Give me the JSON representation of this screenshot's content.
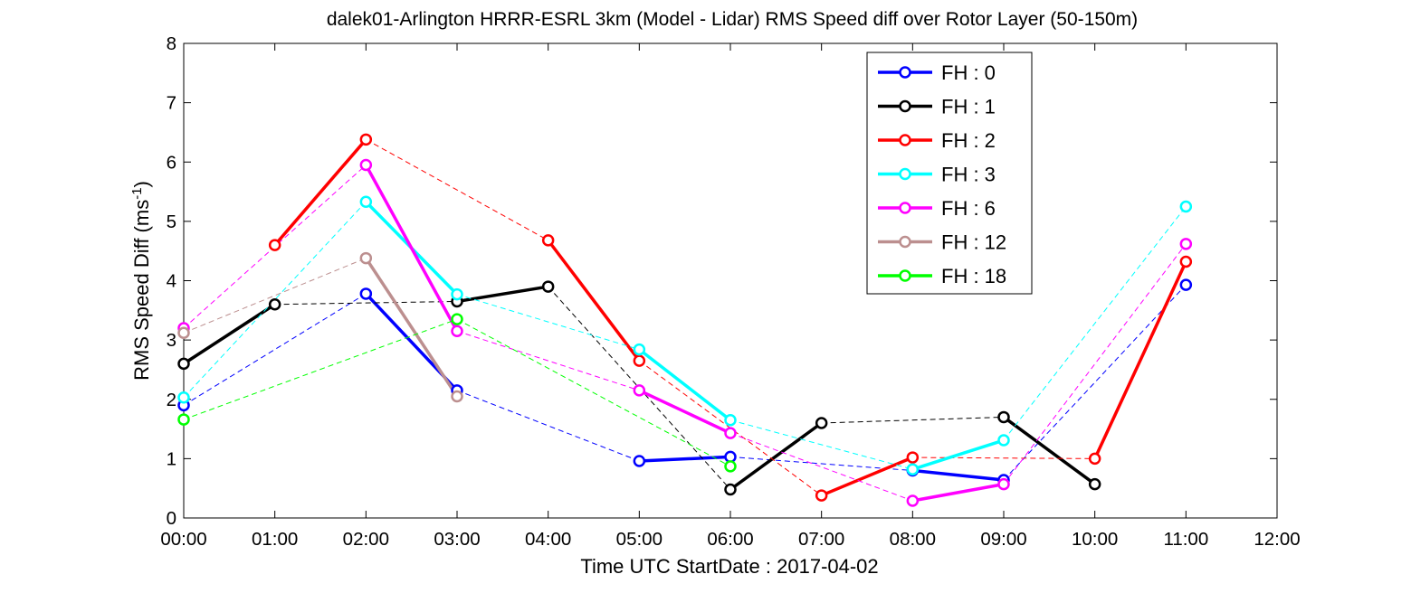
{
  "chart_data": {
    "type": "line",
    "title": "dalek01-Arlington HRRR-ESRL 3km (Model - Lidar) RMS Speed diff over Rotor Layer (50-150m)",
    "xlabel": "Time UTC     StartDate : 2017-04-02",
    "ylabel": {
      "text": "RMS Speed Diff (ms",
      "sup": "-1",
      "tail": ")"
    },
    "xlim": [
      0,
      12
    ],
    "ylim": [
      0,
      8
    ],
    "xticks": [
      {
        "x": 0,
        "label": "00:00"
      },
      {
        "x": 1,
        "label": "01:00"
      },
      {
        "x": 2,
        "label": "02:00"
      },
      {
        "x": 3,
        "label": "03:00"
      },
      {
        "x": 4,
        "label": "04:00"
      },
      {
        "x": 5,
        "label": "05:00"
      },
      {
        "x": 6,
        "label": "06:00"
      },
      {
        "x": 7,
        "label": "07:00"
      },
      {
        "x": 8,
        "label": "08:00"
      },
      {
        "x": 9,
        "label": "09:00"
      },
      {
        "x": 10,
        "label": "10:00"
      },
      {
        "x": 11,
        "label": "11:00"
      },
      {
        "x": 12,
        "label": "12:00"
      }
    ],
    "yticks": [
      {
        "y": 0,
        "label": "0"
      },
      {
        "y": 1,
        "label": "1"
      },
      {
        "y": 2,
        "label": "2"
      },
      {
        "y": 3,
        "label": "3"
      },
      {
        "y": 4,
        "label": "4"
      },
      {
        "y": 5,
        "label": "5"
      },
      {
        "y": 6,
        "label": "6"
      },
      {
        "y": 7,
        "label": "7"
      },
      {
        "y": 8,
        "label": "8"
      }
    ],
    "grid": false,
    "legend_position": "top-right",
    "series": [
      {
        "name": "FH : 0",
        "color": "#0000ff",
        "points": [
          [
            0,
            1.9
          ],
          [
            2,
            3.78
          ],
          [
            3,
            2.15
          ],
          [
            5,
            0.96
          ],
          [
            6,
            1.03
          ],
          [
            8,
            0.8
          ],
          [
            9,
            0.64
          ],
          [
            11,
            3.93
          ]
        ],
        "solid_segments": [
          [
            2,
            3
          ],
          [
            5,
            6
          ],
          [
            8,
            9
          ]
        ]
      },
      {
        "name": "FH : 1",
        "color": "#000000",
        "points": [
          [
            0,
            2.6
          ],
          [
            1,
            3.6
          ],
          [
            3,
            3.65
          ],
          [
            4,
            3.9
          ],
          [
            6,
            0.48
          ],
          [
            7,
            1.6
          ],
          [
            9,
            1.7
          ],
          [
            10,
            0.57
          ]
        ],
        "solid_segments": [
          [
            0,
            1
          ],
          [
            3,
            4
          ],
          [
            6,
            7
          ],
          [
            9,
            10
          ]
        ]
      },
      {
        "name": "FH : 2",
        "color": "#ff0000",
        "points": [
          [
            1,
            4.6
          ],
          [
            2,
            6.38
          ],
          [
            4,
            4.68
          ],
          [
            5,
            2.65
          ],
          [
            7,
            0.38
          ],
          [
            8,
            1.02
          ],
          [
            10,
            1.0
          ],
          [
            11,
            4.32
          ]
        ],
        "solid_segments": [
          [
            1,
            2
          ],
          [
            4,
            5
          ],
          [
            7,
            8
          ],
          [
            10,
            11
          ]
        ]
      },
      {
        "name": "FH : 3",
        "color": "#00ffff",
        "points": [
          [
            0,
            2.03
          ],
          [
            2,
            5.33
          ],
          [
            3,
            3.77
          ],
          [
            5,
            2.84
          ],
          [
            6,
            1.65
          ],
          [
            8,
            0.82
          ],
          [
            9,
            1.31
          ],
          [
            11,
            5.25
          ]
        ],
        "solid_segments": [
          [
            2,
            3
          ],
          [
            5,
            6
          ],
          [
            8,
            9
          ]
        ]
      },
      {
        "name": "FH : 6",
        "color": "#ff00ff",
        "points": [
          [
            0,
            3.2
          ],
          [
            2,
            5.95
          ],
          [
            3,
            3.15
          ],
          [
            5,
            2.15
          ],
          [
            6,
            1.43
          ],
          [
            8,
            0.29
          ],
          [
            9,
            0.57
          ],
          [
            11,
            4.62
          ]
        ],
        "solid_segments": [
          [
            2,
            3
          ],
          [
            5,
            6
          ],
          [
            8,
            9
          ]
        ]
      },
      {
        "name": "FH : 12",
        "color": "#bc8f8f",
        "points": [
          [
            0,
            3.12
          ],
          [
            2,
            4.38
          ],
          [
            3,
            2.05
          ]
        ],
        "solid_segments": [
          [
            2,
            3
          ]
        ]
      },
      {
        "name": "FH : 18",
        "color": "#00ff00",
        "points": [
          [
            0,
            1.66
          ],
          [
            3,
            3.35
          ],
          [
            6,
            0.87
          ]
        ],
        "solid_segments": []
      }
    ]
  }
}
